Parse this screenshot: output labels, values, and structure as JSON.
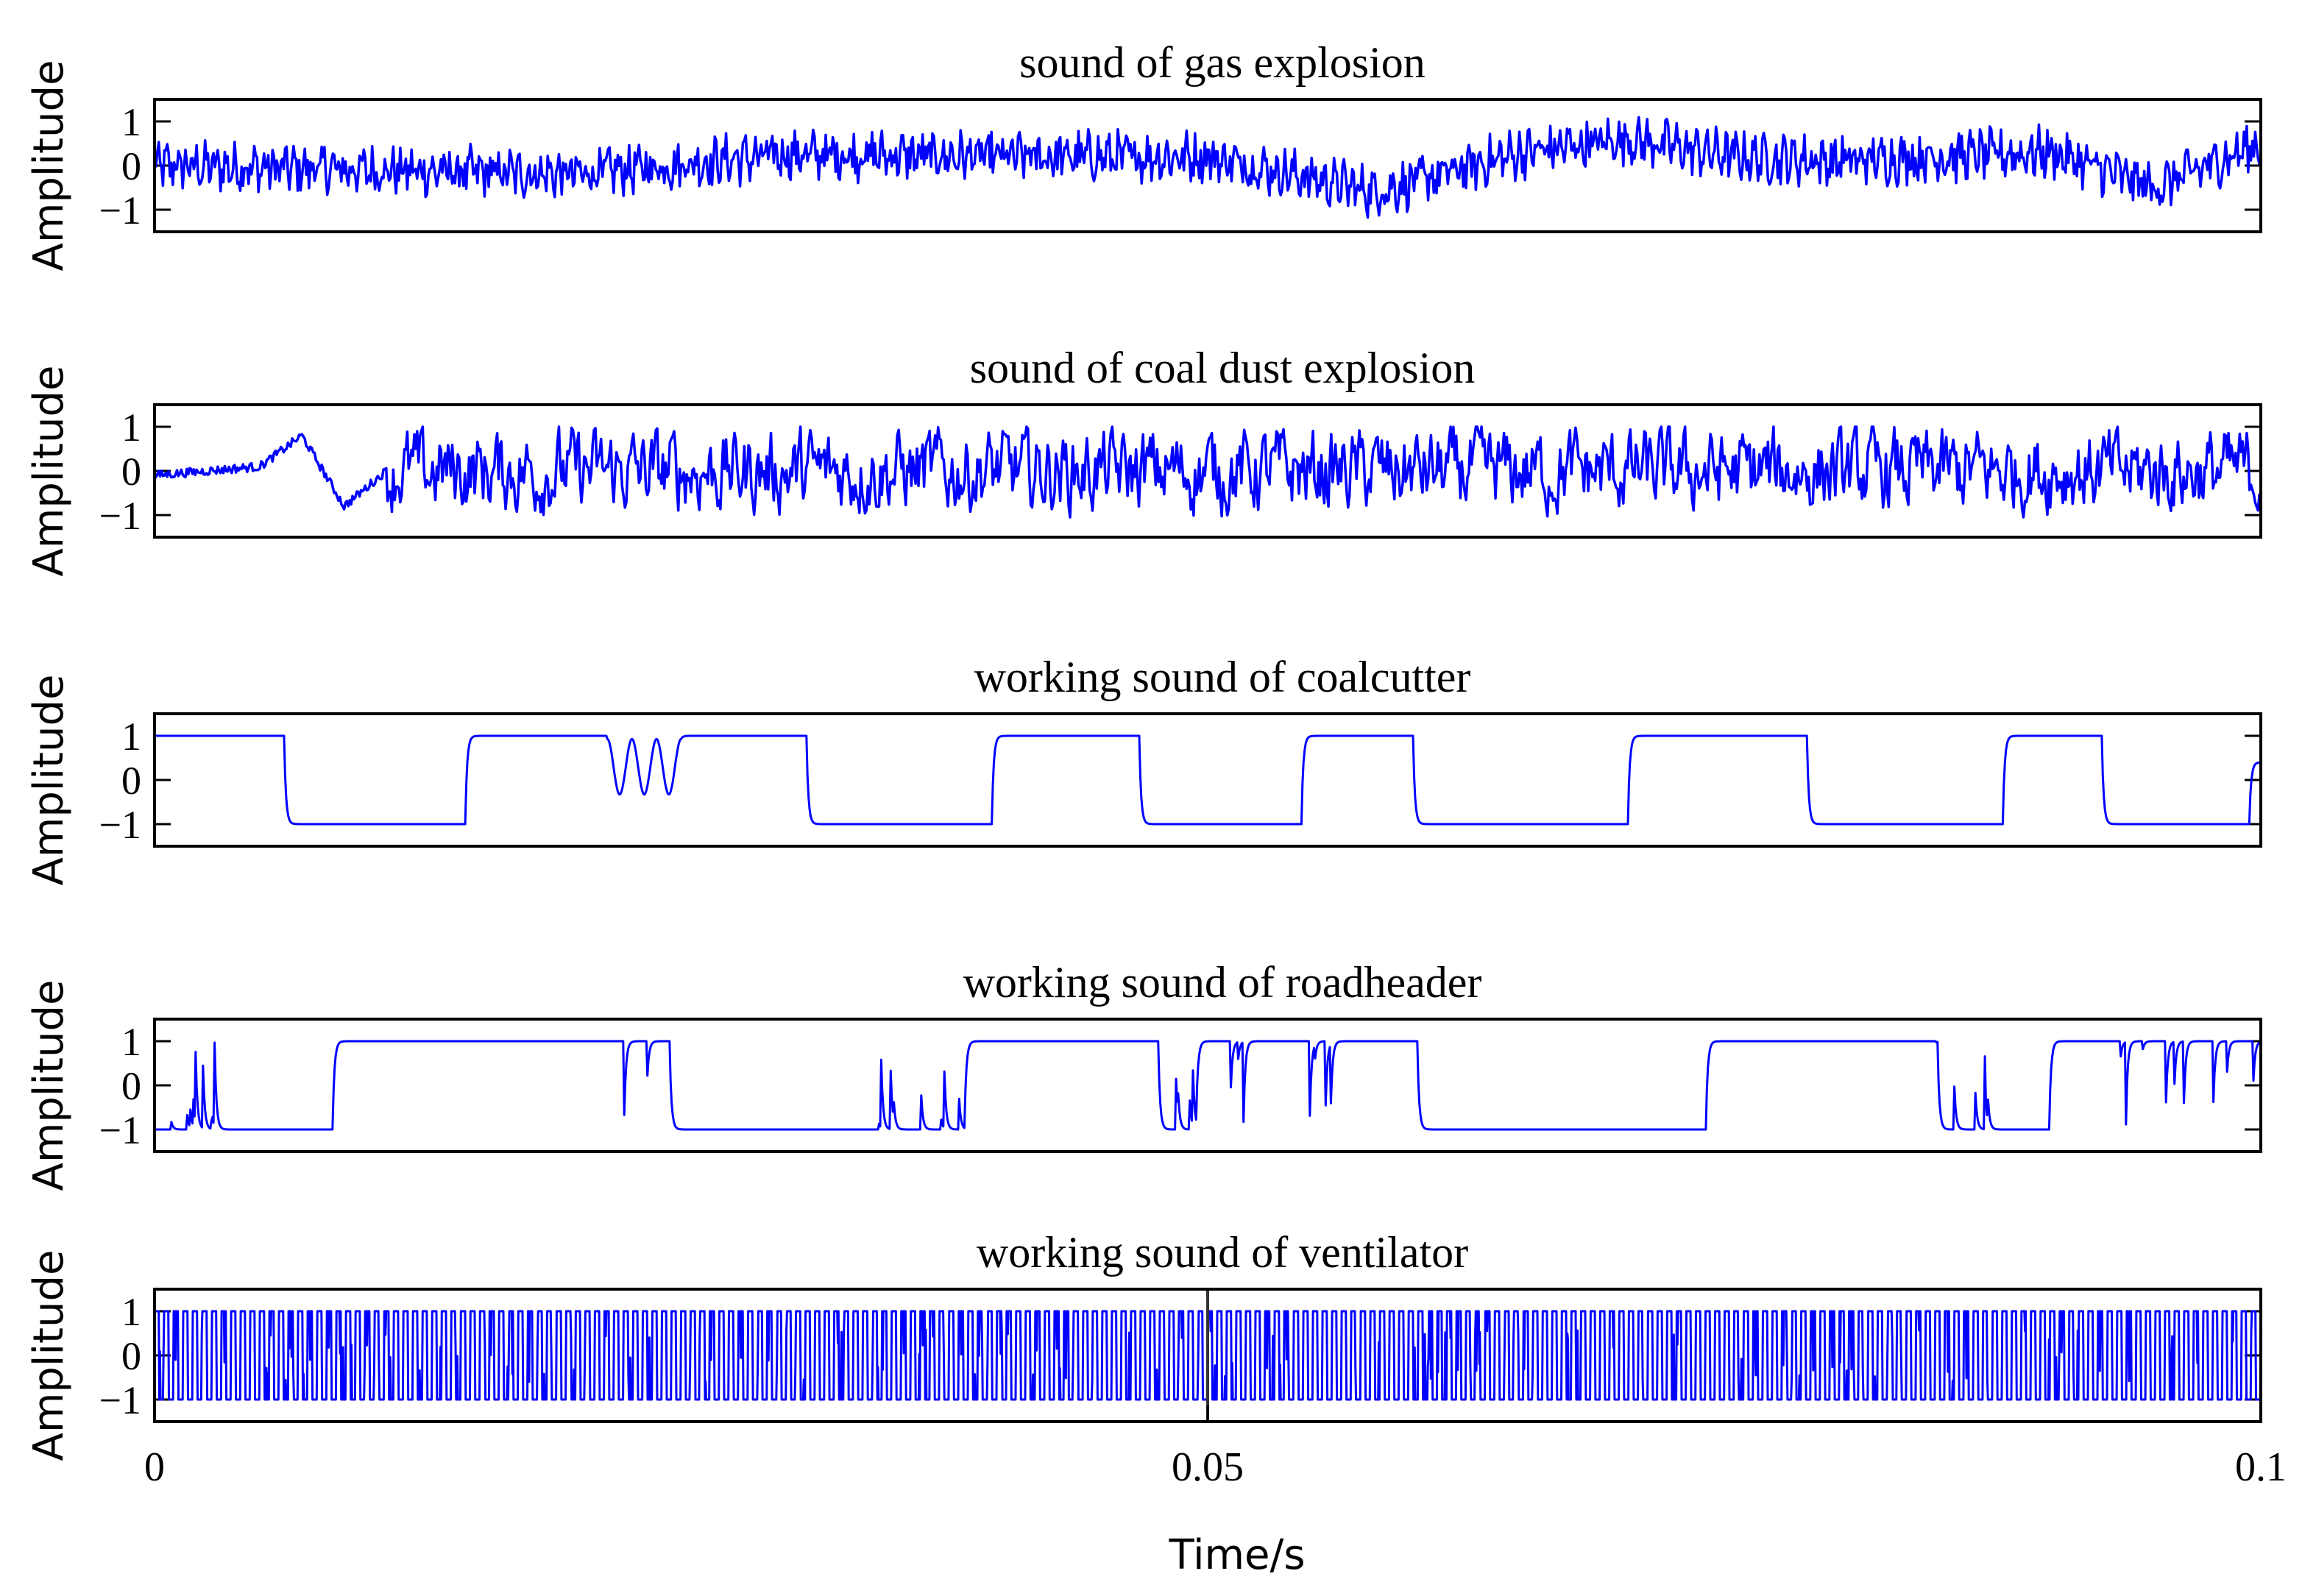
{
  "chart_data": {
    "type": "line",
    "layout": "stacked-subplots",
    "shared_x": {
      "xlabel": "Time/s",
      "xlim": [
        0,
        0.1
      ],
      "xticks": [
        0,
        0.05,
        0.1
      ],
      "xtick_labels": [
        "0",
        "0.05",
        "0.1"
      ]
    },
    "line_color": "#0000ff",
    "grid": false,
    "legend": "none",
    "subplots": [
      {
        "title": "sound of gas explosion",
        "ylabel": "Amplitude",
        "ylim": [
          -1.5,
          1.5
        ],
        "yticks": [
          1,
          0,
          -1
        ],
        "ytick_labels": [
          "1",
          "0",
          "−1"
        ],
        "signal": "noisy-wave",
        "samples": 1500,
        "envelope_breakpoints": {
          "t": [
            0,
            0.01,
            0.02,
            0.03,
            0.04,
            0.05,
            0.058,
            0.065,
            0.07,
            0.075,
            0.08,
            0.09,
            0.095,
            0.1
          ],
          "v": [
            0.0,
            -0.1,
            -0.2,
            0.25,
            0.2,
            0.2,
            -0.6,
            0.3,
            0.6,
            0.2,
            0.1,
            0.3,
            -0.5,
            0.5
          ]
        }
      },
      {
        "title": "sound of coal dust explosion",
        "ylabel": "Amplitude",
        "ylim": [
          -1.5,
          1.5
        ],
        "yticks": [
          1,
          0,
          -1
        ],
        "ytick_labels": [
          "1",
          "0",
          "−1"
        ],
        "signal": "noisy-wave",
        "samples": 1500,
        "quiet_segment": {
          "t_end": 0.011,
          "level": 0.1
        },
        "envelope_breakpoints": {
          "t": [
            0,
            0.005,
            0.007,
            0.009,
            0.011,
            0.1
          ],
          "v": [
            -0.1,
            0.1,
            0.8,
            -0.8,
            0.0,
            0.0
          ]
        }
      },
      {
        "title": "working sound of coalcutter",
        "ylabel": "Amplitude",
        "ylim": [
          -1.5,
          1.5
        ],
        "yticks": [
          1,
          0,
          -1
        ],
        "ytick_labels": [
          "1",
          "0",
          "−1"
        ],
        "signal": "square-wave",
        "segments": [
          {
            "t0": 0.0,
            "t1": 0.0062,
            "level": 1
          },
          {
            "t0": 0.0062,
            "t1": 0.0148,
            "level": -1
          },
          {
            "t0": 0.0148,
            "t1": 0.031,
            "level": 1
          },
          {
            "t0": 0.031,
            "t1": 0.0398,
            "level": -1
          },
          {
            "t0": 0.0398,
            "t1": 0.0468,
            "level": 1
          },
          {
            "t0": 0.0468,
            "t1": 0.0545,
            "level": -1
          },
          {
            "t0": 0.0545,
            "t1": 0.0598,
            "level": 1
          },
          {
            "t0": 0.0598,
            "t1": 0.07,
            "level": -1
          },
          {
            "t0": 0.07,
            "t1": 0.0785,
            "level": 1
          },
          {
            "t0": 0.0785,
            "t1": 0.0878,
            "level": -1
          },
          {
            "t0": 0.0878,
            "t1": 0.0925,
            "level": 1
          },
          {
            "t0": 0.0925,
            "t1": 0.0995,
            "level": -1
          },
          {
            "t0": 0.0995,
            "t1": 0.1,
            "level": 0.4
          }
        ],
        "oscillation": {
          "t0": 0.0215,
          "t1": 0.025,
          "min": -0.4
        }
      },
      {
        "title": "working sound of roadheader",
        "ylabel": "Amplitude",
        "ylim": [
          -1.5,
          1.5
        ],
        "yticks": [
          1,
          0,
          -1
        ],
        "ytick_labels": [
          "1",
          "0",
          "−1"
        ],
        "signal": "square-wave",
        "segments": [
          {
            "t0": 0.0,
            "t1": 0.0085,
            "level": -1
          },
          {
            "t0": 0.0085,
            "t1": 0.0212,
            "level": 1
          },
          {
            "t0": 0.0212,
            "t1": 0.0245,
            "level": 1
          },
          {
            "t0": 0.0245,
            "t1": 0.0385,
            "level": -1
          },
          {
            "t0": 0.0385,
            "t1": 0.0477,
            "level": 1
          },
          {
            "t0": 0.0477,
            "t1": 0.0495,
            "level": -1
          },
          {
            "t0": 0.0495,
            "t1": 0.06,
            "level": 1
          },
          {
            "t0": 0.06,
            "t1": 0.0737,
            "level": -1
          },
          {
            "t0": 0.0737,
            "t1": 0.0847,
            "level": 1
          },
          {
            "t0": 0.0847,
            "t1": 0.09,
            "level": -1
          },
          {
            "t0": 0.09,
            "t1": 0.1,
            "level": 1
          }
        ],
        "glitch_zones": [
          [
            0.0,
            0.005
          ],
          [
            0.0215,
            0.0245
          ],
          [
            0.034,
            0.0385
          ],
          [
            0.048,
            0.056
          ],
          [
            0.0845,
            0.0875
          ],
          [
            0.092,
            0.1
          ]
        ]
      },
      {
        "title": "working sound of ventilator",
        "ylabel": "Amplitude",
        "ylim": [
          -1.5,
          1.5
        ],
        "yticks": [
          1,
          0,
          -1
        ],
        "ytick_labels": [
          "1",
          "0",
          "−1"
        ],
        "signal": "fast-square-wave",
        "cycles": 220,
        "marker_line_x": 0.05
      }
    ]
  }
}
